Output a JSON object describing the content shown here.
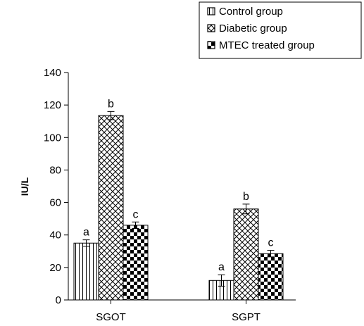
{
  "chart_data": {
    "type": "bar",
    "categories": [
      "SGOT",
      "SGPT"
    ],
    "ylabel": "IU/L",
    "xlabel": "",
    "title": "",
    "ylim": [
      0,
      140
    ],
    "yticks": [
      0,
      20,
      40,
      60,
      80,
      100,
      120,
      140
    ],
    "legend_placement": "top-right",
    "grid": false,
    "series": [
      {
        "name": "Control group",
        "pattern": "vertical-stripes",
        "values": [
          35,
          12
        ],
        "errors": [
          2,
          3.5
        ],
        "labels": [
          "a",
          "a"
        ]
      },
      {
        "name": "Diabetic group",
        "pattern": "diagonal-crosshatch",
        "values": [
          113.5,
          56
        ],
        "errors": [
          2.5,
          3
        ],
        "labels": [
          "b",
          "b"
        ]
      },
      {
        "name": "MTEC treated group",
        "pattern": "checkerboard",
        "values": [
          46,
          28.5
        ],
        "errors": [
          2,
          2
        ],
        "labels": [
          "c",
          "c"
        ]
      }
    ]
  }
}
